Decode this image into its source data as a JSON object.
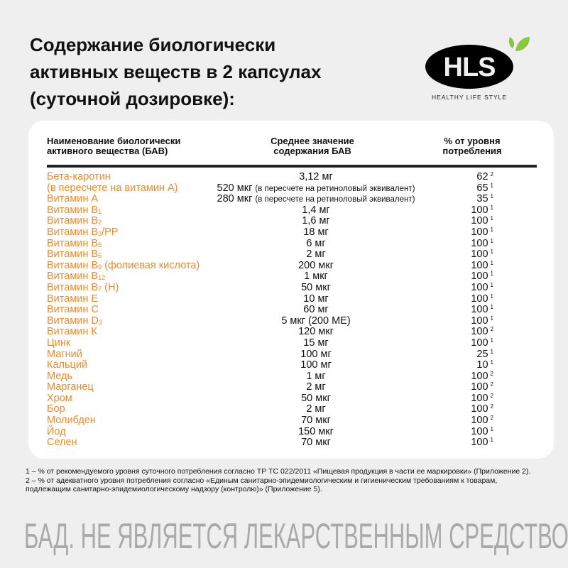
{
  "title": [
    "Содержание биологически",
    "активных веществ в 2 капсулах",
    "(суточной дозировке):"
  ],
  "logo": {
    "text": "HLS",
    "tagline": "HEALTHY LIFE STYLE",
    "colors": {
      "oval": "#000000",
      "leaf": "#8cc63f"
    }
  },
  "colors": {
    "accent": "#ee8a2a",
    "background": "#efefef"
  },
  "table": {
    "headers": {
      "name": [
        "Наименование биологически",
        "активного вещества (БАВ)"
      ],
      "value": [
        "Среднее значение",
        "содержания БАВ"
      ],
      "pct": [
        "% от уровня",
        "потребления"
      ]
    },
    "rows": [
      {
        "name": "Бета-каротин",
        "sub": "",
        "value": "3,12 мг",
        "note": "",
        "pct": "62",
        "ref": "2"
      },
      {
        "name": "(в пересчете на витамин А)",
        "sub": "",
        "value": "520 мкг",
        "note": "(в пересчете на ретиноловый эквивалент)",
        "pct": "65",
        "ref": "1"
      },
      {
        "name": "Витамин А",
        "sub": "",
        "value": "280 мкг",
        "note": "(в пересчете на ретиноловый эквивалент)",
        "pct": "35",
        "ref": "1"
      },
      {
        "name": "Витамин В",
        "sub": "1",
        "value": "1,4 мг",
        "note": "",
        "pct": "100",
        "ref": "1"
      },
      {
        "name": "Витамин В",
        "sub": "2",
        "value": "1,6 мг",
        "note": "",
        "pct": "100",
        "ref": "1"
      },
      {
        "name": "Витамин В",
        "sub": "3",
        "suffix": "/PP",
        "value": "18 мг",
        "note": "",
        "pct": "100",
        "ref": "1"
      },
      {
        "name": "Витамин В",
        "sub": "5",
        "value": "6 мг",
        "note": "",
        "pct": "100",
        "ref": "1"
      },
      {
        "name": "Витамин В",
        "sub": "6",
        "value": "2 мг",
        "note": "",
        "pct": "100",
        "ref": "1"
      },
      {
        "name": "Витамин В",
        "sub": "9",
        "suffix": " (фолиевая кислота)",
        "value": "200 мкг",
        "note": "",
        "pct": "100",
        "ref": "1"
      },
      {
        "name": "Витамин В",
        "sub": "12",
        "value": "1 мкг",
        "note": "",
        "pct": "100",
        "ref": "1"
      },
      {
        "name": "Витамин В",
        "sub": "7",
        "suffix": " (Н)",
        "value": "50 мкг",
        "note": "",
        "pct": "100",
        "ref": "1"
      },
      {
        "name": "Витамин Е",
        "sub": "",
        "value": "10 мг",
        "note": "",
        "pct": "100",
        "ref": "1"
      },
      {
        "name": "Витамин С",
        "sub": "",
        "value": "60 мг",
        "note": "",
        "pct": "100",
        "ref": "1"
      },
      {
        "name": "Витамин D",
        "sub": "3",
        "value": "5 мкг (200 МЕ)",
        "note": "",
        "pct": "100",
        "ref": "1"
      },
      {
        "name": "Витамин К",
        "sub": "",
        "value": "120 мкг",
        "note": "",
        "pct": "100",
        "ref": "2"
      },
      {
        "name": "Цинк",
        "sub": "",
        "value": "15 мг",
        "note": "",
        "pct": "100",
        "ref": "1"
      },
      {
        "name": "Магний",
        "sub": "",
        "value": "100 мг",
        "note": "",
        "pct": "25",
        "ref": "1"
      },
      {
        "name": "Кальций",
        "sub": "",
        "value": "100 мг",
        "note": "",
        "pct": "10",
        "ref": "1"
      },
      {
        "name": "Медь",
        "sub": "",
        "value": "1 мг",
        "note": "",
        "pct": "100",
        "ref": "2"
      },
      {
        "name": "Марганец",
        "sub": "",
        "value": "2 мг",
        "note": "",
        "pct": "100",
        "ref": "2"
      },
      {
        "name": "Хром",
        "sub": "",
        "value": "50 мкг",
        "note": "",
        "pct": "100",
        "ref": "2"
      },
      {
        "name": "Бор",
        "sub": "",
        "value": "2 мг",
        "note": "",
        "pct": "100",
        "ref": "2"
      },
      {
        "name": "Молибден",
        "sub": "",
        "value": "70 мкг",
        "note": "",
        "pct": "100",
        "ref": "2"
      },
      {
        "name": "Йод",
        "sub": "",
        "value": "150 мкг",
        "note": "",
        "pct": "100",
        "ref": "1"
      },
      {
        "name": "Селен",
        "sub": "",
        "value": "70 мкг",
        "note": "",
        "pct": "100",
        "ref": "1"
      }
    ]
  },
  "footnotes": [
    "1 – % от рекомендуемого уровня суточного потребления согласно ТР ТС 022/2011 «Пищевая продукция в части ее маркировки» (Приложение 2).",
    "2 – % от адекватного уровня потребления согласно «Единым санитарно-эпидемиологическим и гигиеническим требованиям к товарам, подлежащим санитарно-эпидемиологическому надзору (контролю)» (Приложение 5)."
  ],
  "disclaimer": "БАД. НЕ ЯВЛЯЕТСЯ ЛЕКАРСТВЕННЫМ СРЕДСТВОМ."
}
